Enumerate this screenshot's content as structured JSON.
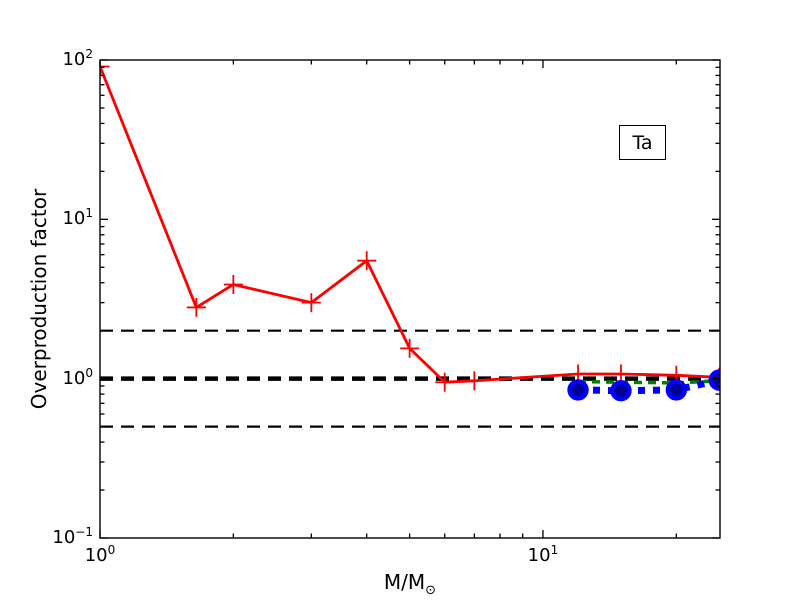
{
  "figure": {
    "background": "#ffffff"
  },
  "annotation": {
    "label": "Ta"
  },
  "axes": {
    "x": {
      "label_base": "M/M",
      "label_sub": "⊙",
      "scale": "log",
      "ticks": [
        {
          "base": "10",
          "exp": "0",
          "value": 1
        },
        {
          "base": "10",
          "exp": "1",
          "value": 10
        }
      ],
      "minor_ticks": [
        2,
        3,
        4,
        5,
        6,
        7,
        8,
        9,
        20
      ]
    },
    "y": {
      "label": "Overproduction factor",
      "scale": "log",
      "ticks": [
        {
          "base": "10",
          "exp": "2",
          "value": 100
        },
        {
          "base": "10",
          "exp": "1",
          "value": 10
        },
        {
          "base": "10",
          "exp": "0",
          "value": 1
        },
        {
          "base": "10",
          "exp": "−1",
          "value": 0.1
        }
      ],
      "minor_ticks": [
        0.2,
        0.3,
        0.4,
        0.5,
        0.6,
        0.7,
        0.8,
        0.9,
        2,
        3,
        4,
        5,
        6,
        7,
        8,
        9,
        20,
        30,
        40,
        50,
        60,
        70,
        80,
        90
      ]
    }
  },
  "chart_data": {
    "type": "line",
    "title": "",
    "xlabel": "M/M⊙",
    "ylabel": "Overproduction factor",
    "annotation": "Ta",
    "xscale": "log",
    "yscale": "log",
    "xlim": [
      1,
      25.1
    ],
    "ylim": [
      0.1,
      100
    ],
    "grid": false,
    "legend": "none",
    "reference_lines": [
      {
        "y": 2.0,
        "color": "#000000",
        "style": "dashed",
        "width": 2.2
      },
      {
        "y": 1.0,
        "color": "#000000",
        "style": "dashed",
        "width": 4.5
      },
      {
        "y": 0.5,
        "color": "#000000",
        "style": "dashed",
        "width": 2.2
      }
    ],
    "series": [
      {
        "name": "red-solid-plus-markers",
        "color": "#ff0000",
        "style": "solid",
        "width": 2.8,
        "marker": "plus",
        "points": [
          [
            1.0,
            91
          ],
          [
            1.65,
            2.8
          ],
          [
            2,
            3.9
          ],
          [
            3,
            3.0
          ],
          [
            4,
            5.5
          ],
          [
            5,
            1.55
          ],
          [
            6,
            0.95
          ],
          [
            7,
            0.97
          ],
          [
            12,
            1.07
          ],
          [
            15,
            1.07
          ],
          [
            20,
            1.05
          ],
          [
            25,
            1.02
          ]
        ]
      },
      {
        "name": "green-dashed",
        "color": "#008000",
        "style": "dashed",
        "width": 3.5,
        "marker": "none",
        "points": [
          [
            12,
            0.96
          ],
          [
            15,
            0.95
          ],
          [
            20,
            0.94
          ],
          [
            25,
            0.97
          ]
        ]
      },
      {
        "name": "blue-thick-dashed-circle-markers",
        "color": "#0000ff",
        "style": "dashed-thick",
        "width": 7,
        "marker": "circle",
        "marker_fill": "#000099",
        "points": [
          [
            12,
            0.85
          ],
          [
            15,
            0.84
          ],
          [
            20,
            0.85
          ],
          [
            25,
            0.98
          ]
        ]
      }
    ]
  }
}
